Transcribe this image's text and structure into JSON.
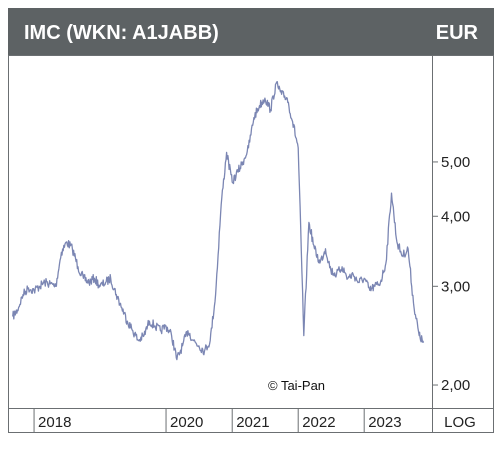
{
  "header": {
    "title": "IMC (WKN: A1JABB)",
    "currency": "EUR"
  },
  "footer": {
    "scale_label": "LOG"
  },
  "credit": "© Tai-Pan",
  "colors": {
    "header_bg": "#5d6264",
    "line": "#7b86b3",
    "border": "#6b6f72"
  },
  "chart_data": {
    "type": "line",
    "title": "IMC (WKN: A1JABB)",
    "unit": "EUR",
    "y_scale": "log",
    "ylim": [
      1.85,
      7.6
    ],
    "yticks": [
      {
        "value": 2.0,
        "label": "2,00"
      },
      {
        "value": 3.0,
        "label": "3,00"
      },
      {
        "value": 4.0,
        "label": "4,00"
      },
      {
        "value": 5.0,
        "label": "5,00"
      }
    ],
    "xlim": [
      "2017-09-01",
      "2023-12-31"
    ],
    "xticks": [
      {
        "value": "2018-01-01",
        "label": "2018"
      },
      {
        "value": "2020-01-01",
        "label": "2020"
      },
      {
        "value": "2021-01-01",
        "label": "2021"
      },
      {
        "value": "2022-01-01",
        "label": "2022"
      },
      {
        "value": "2023-01-01",
        "label": "2023"
      }
    ],
    "grid": false,
    "series": [
      {
        "points": [
          [
            "2017-09-05",
            2.65
          ],
          [
            "2017-10-01",
            2.72
          ],
          [
            "2017-11-01",
            2.9
          ],
          [
            "2017-12-01",
            2.98
          ],
          [
            "2018-01-01",
            2.95
          ],
          [
            "2018-02-01",
            3.0
          ],
          [
            "2018-03-01",
            3.05
          ],
          [
            "2018-04-01",
            3.03
          ],
          [
            "2018-05-01",
            3.0
          ],
          [
            "2018-06-01",
            3.45
          ],
          [
            "2018-07-01",
            3.6
          ],
          [
            "2018-08-01",
            3.5
          ],
          [
            "2018-09-01",
            3.25
          ],
          [
            "2018-10-01",
            3.1
          ],
          [
            "2018-11-01",
            3.05
          ],
          [
            "2018-12-01",
            3.1
          ],
          [
            "2019-01-01",
            3.0
          ],
          [
            "2019-02-01",
            3.05
          ],
          [
            "2019-03-01",
            3.1
          ],
          [
            "2019-04-01",
            2.9
          ],
          [
            "2019-05-01",
            2.75
          ],
          [
            "2019-06-01",
            2.6
          ],
          [
            "2019-07-01",
            2.5
          ],
          [
            "2019-08-01",
            2.4
          ],
          [
            "2019-09-01",
            2.45
          ],
          [
            "2019-10-01",
            2.6
          ],
          [
            "2019-11-01",
            2.55
          ],
          [
            "2019-12-01",
            2.5
          ],
          [
            "2020-01-01",
            2.55
          ],
          [
            "2020-02-01",
            2.45
          ],
          [
            "2020-03-01",
            2.22
          ],
          [
            "2020-04-01",
            2.35
          ],
          [
            "2020-05-01",
            2.5
          ],
          [
            "2020-06-01",
            2.4
          ],
          [
            "2020-07-01",
            2.35
          ],
          [
            "2020-08-01",
            2.3
          ],
          [
            "2020-09-01",
            2.4
          ],
          [
            "2020-10-01",
            2.9
          ],
          [
            "2020-11-01",
            4.2
          ],
          [
            "2020-12-01",
            5.2
          ],
          [
            "2021-01-01",
            4.6
          ],
          [
            "2021-02-01",
            4.8
          ],
          [
            "2021-03-01",
            5.0
          ],
          [
            "2021-04-01",
            5.3
          ],
          [
            "2021-05-01",
            6.0
          ],
          [
            "2021-06-01",
            6.3
          ],
          [
            "2021-07-01",
            6.5
          ],
          [
            "2021-08-01",
            6.2
          ],
          [
            "2021-09-01",
            6.9
          ],
          [
            "2021-10-01",
            6.6
          ],
          [
            "2021-11-01",
            6.5
          ],
          [
            "2021-12-01",
            5.9
          ],
          [
            "2022-01-01",
            5.3
          ],
          [
            "2022-02-01",
            2.45
          ],
          [
            "2022-03-01",
            3.9
          ],
          [
            "2022-04-01",
            3.5
          ],
          [
            "2022-05-01",
            3.3
          ],
          [
            "2022-06-01",
            3.5
          ],
          [
            "2022-07-01",
            3.2
          ],
          [
            "2022-08-01",
            3.15
          ],
          [
            "2022-09-01",
            3.25
          ],
          [
            "2022-10-01",
            3.1
          ],
          [
            "2022-11-01",
            3.15
          ],
          [
            "2022-12-01",
            3.05
          ],
          [
            "2023-01-01",
            3.1
          ],
          [
            "2023-02-01",
            2.95
          ],
          [
            "2023-03-01",
            3.0
          ],
          [
            "2023-04-01",
            3.05
          ],
          [
            "2023-05-01",
            3.3
          ],
          [
            "2023-06-01",
            4.4
          ],
          [
            "2023-07-01",
            3.6
          ],
          [
            "2023-08-01",
            3.4
          ],
          [
            "2023-09-01",
            3.5
          ],
          [
            "2023-10-01",
            2.8
          ],
          [
            "2023-11-01",
            2.45
          ],
          [
            "2023-11-25",
            2.38
          ]
        ]
      }
    ]
  }
}
